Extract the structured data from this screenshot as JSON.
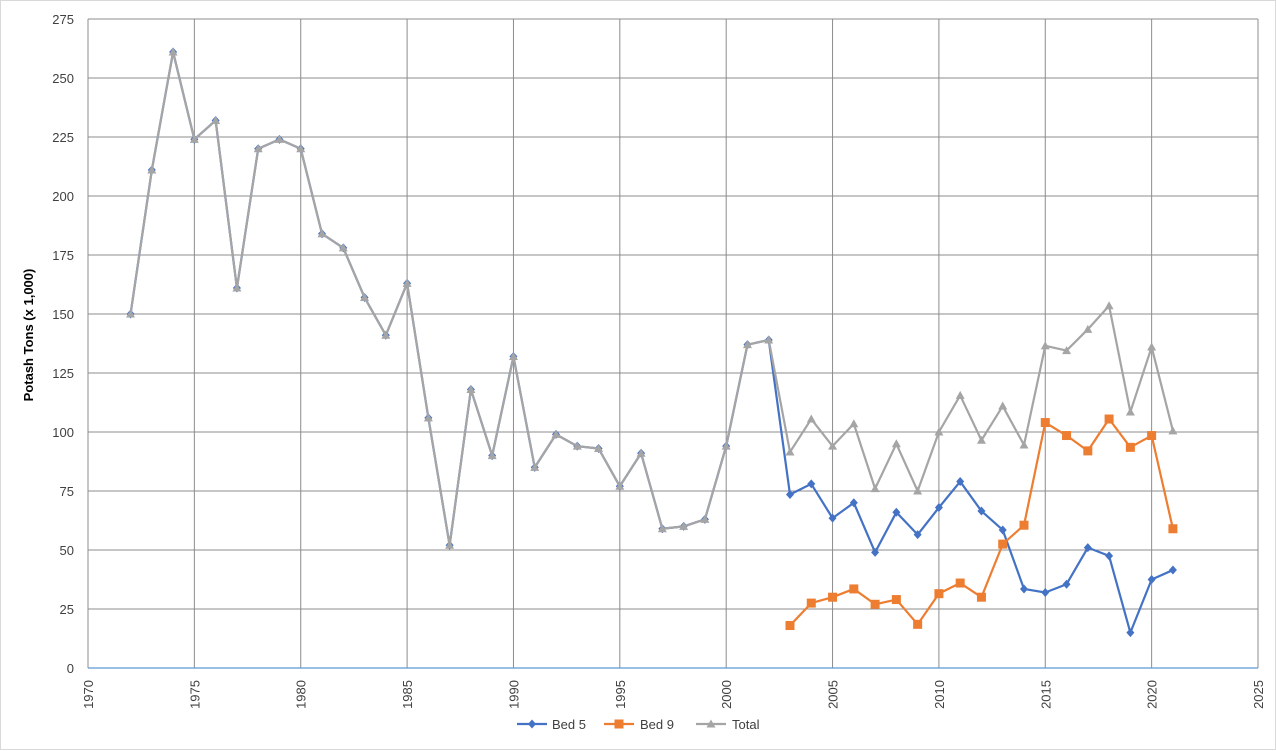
{
  "chart_data": {
    "type": "line",
    "title": "",
    "xlabel": "",
    "ylabel": "Potash Tons (x 1,000)",
    "xlim": [
      1970,
      2025
    ],
    "ylim": [
      0,
      275
    ],
    "xticks": [
      1970,
      1975,
      1980,
      1985,
      1990,
      1995,
      2000,
      2005,
      2010,
      2015,
      2020,
      2025
    ],
    "yticks": [
      0,
      25,
      50,
      75,
      100,
      125,
      150,
      175,
      200,
      225,
      250,
      275
    ],
    "grid": true,
    "legend_position": "bottom",
    "series": [
      {
        "name": "Bed 5",
        "color": "#4472c4",
        "marker": "diamond",
        "x": [
          1972,
          1973,
          1974,
          1975,
          1976,
          1977,
          1978,
          1979,
          1980,
          1981,
          1982,
          1983,
          1984,
          1985,
          1986,
          1987,
          1988,
          1989,
          1990,
          1991,
          1992,
          1993,
          1994,
          1995,
          1996,
          1997,
          1998,
          1999,
          2000,
          2001,
          2002,
          2003,
          2004,
          2005,
          2006,
          2007,
          2008,
          2009,
          2010,
          2011,
          2012,
          2013,
          2014,
          2015,
          2016,
          2017,
          2018,
          2019,
          2020,
          2021
        ],
        "values": [
          150,
          211,
          261,
          224,
          232,
          161,
          220,
          224,
          220,
          184,
          178,
          157,
          141,
          163,
          106,
          52,
          118,
          90,
          132,
          85,
          99,
          94,
          93,
          77,
          91,
          59,
          60,
          63,
          94,
          137,
          139,
          73.5,
          78,
          63.5,
          70,
          49,
          66,
          56.5,
          68,
          79,
          66.5,
          58.5,
          33.5,
          32,
          35.5,
          51,
          47.5,
          15,
          37.5,
          41.5
        ]
      },
      {
        "name": "Bed 9",
        "color": "#ed7d31",
        "marker": "square",
        "x": [
          2003,
          2004,
          2005,
          2006,
          2007,
          2008,
          2009,
          2010,
          2011,
          2012,
          2013,
          2014,
          2015,
          2016,
          2017,
          2018,
          2019,
          2020,
          2021
        ],
        "values": [
          18,
          27.5,
          30,
          33.5,
          27,
          29,
          18.5,
          31.5,
          36,
          30,
          52.5,
          60.5,
          104,
          98.5,
          92,
          105.5,
          93.5,
          98.5,
          59
        ]
      },
      {
        "name": "Total",
        "color": "#a5a5a5",
        "marker": "triangle",
        "x": [
          1972,
          1973,
          1974,
          1975,
          1976,
          1977,
          1978,
          1979,
          1980,
          1981,
          1982,
          1983,
          1984,
          1985,
          1986,
          1987,
          1988,
          1989,
          1990,
          1991,
          1992,
          1993,
          1994,
          1995,
          1996,
          1997,
          1998,
          1999,
          2000,
          2001,
          2002,
          2003,
          2004,
          2005,
          2006,
          2007,
          2008,
          2009,
          2010,
          2011,
          2012,
          2013,
          2014,
          2015,
          2016,
          2017,
          2018,
          2019,
          2020,
          2021
        ],
        "values": [
          150,
          211,
          261,
          224,
          232,
          161,
          220,
          224,
          220,
          184,
          178,
          157,
          141,
          163,
          106,
          52,
          118,
          90,
          132,
          85,
          99,
          94,
          93,
          77,
          91,
          59,
          60,
          63,
          94,
          137,
          139,
          91.5,
          105.5,
          94,
          103.5,
          76,
          95,
          75,
          100,
          115.5,
          96.5,
          111,
          94.5,
          136.5,
          134.5,
          143.5,
          153.5,
          108.5,
          136,
          100.5
        ]
      }
    ]
  }
}
